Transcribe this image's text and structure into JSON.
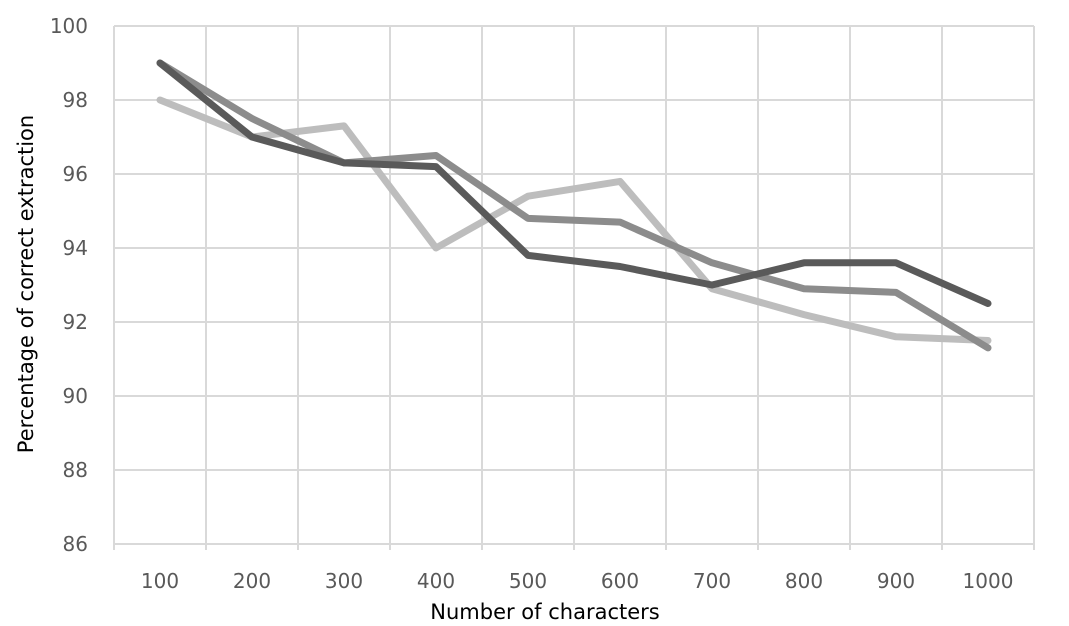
{
  "chart_data": {
    "type": "line",
    "xlabel": "Number of characters",
    "ylabel": "Percentage of correct extraction",
    "categories": [
      "100",
      "200",
      "300",
      "400",
      "500",
      "600",
      "700",
      "800",
      "900",
      "1000"
    ],
    "ylim": [
      86,
      100
    ],
    "yticks": [
      "86",
      "88",
      "90",
      "92",
      "94",
      "96",
      "98",
      "100"
    ],
    "grid": true,
    "series": [
      {
        "color": "#5a5a5a",
        "values": [
          99.0,
          97.0,
          96.3,
          96.2,
          93.8,
          93.5,
          93.0,
          93.6,
          93.6,
          92.5
        ]
      },
      {
        "color": "#8c8c8c",
        "values": [
          99.0,
          97.5,
          96.3,
          96.5,
          94.8,
          94.7,
          93.6,
          92.9,
          92.8,
          91.3
        ]
      },
      {
        "color": "#bdbdbd",
        "values": [
          98.0,
          97.0,
          97.3,
          94.0,
          95.4,
          95.8,
          92.9,
          92.2,
          91.6,
          91.5
        ]
      }
    ]
  }
}
